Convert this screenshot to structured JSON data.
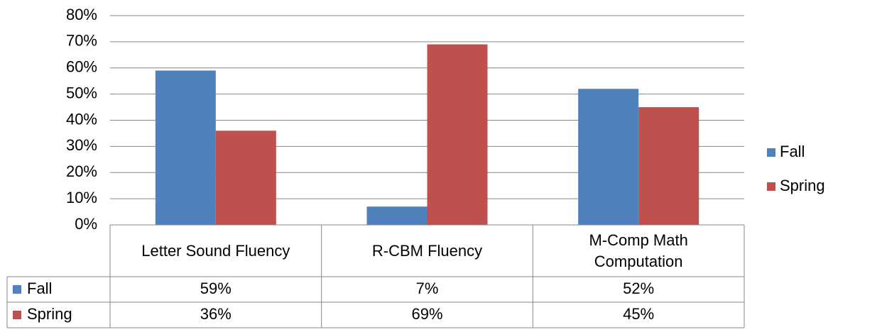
{
  "chart_data": {
    "type": "bar",
    "categories": [
      "Letter Sound Fluency",
      "R-CBM Fluency",
      "M-Comp Math Computation"
    ],
    "series": [
      {
        "name": "Fall",
        "color": "#4f81bd",
        "values": [
          59,
          7,
          52
        ],
        "value_labels": [
          "59%",
          "7%",
          "52%"
        ]
      },
      {
        "name": "Spring",
        "color": "#c0504d",
        "values": [
          36,
          69,
          45
        ],
        "value_labels": [
          "36%",
          "69%",
          "45%"
        ]
      }
    ],
    "ylim": [
      0,
      80
    ],
    "yticks": [
      {
        "value": 0,
        "label": "0%"
      },
      {
        "value": 10,
        "label": "10%"
      },
      {
        "value": 20,
        "label": "20%"
      },
      {
        "value": 30,
        "label": "30%"
      },
      {
        "value": 40,
        "label": "40%"
      },
      {
        "value": 50,
        "label": "50%"
      },
      {
        "value": 60,
        "label": "60%"
      },
      {
        "value": 70,
        "label": "70%"
      },
      {
        "value": 80,
        "label": "80%"
      }
    ],
    "grid": true,
    "legend": "right",
    "data_table": true
  }
}
